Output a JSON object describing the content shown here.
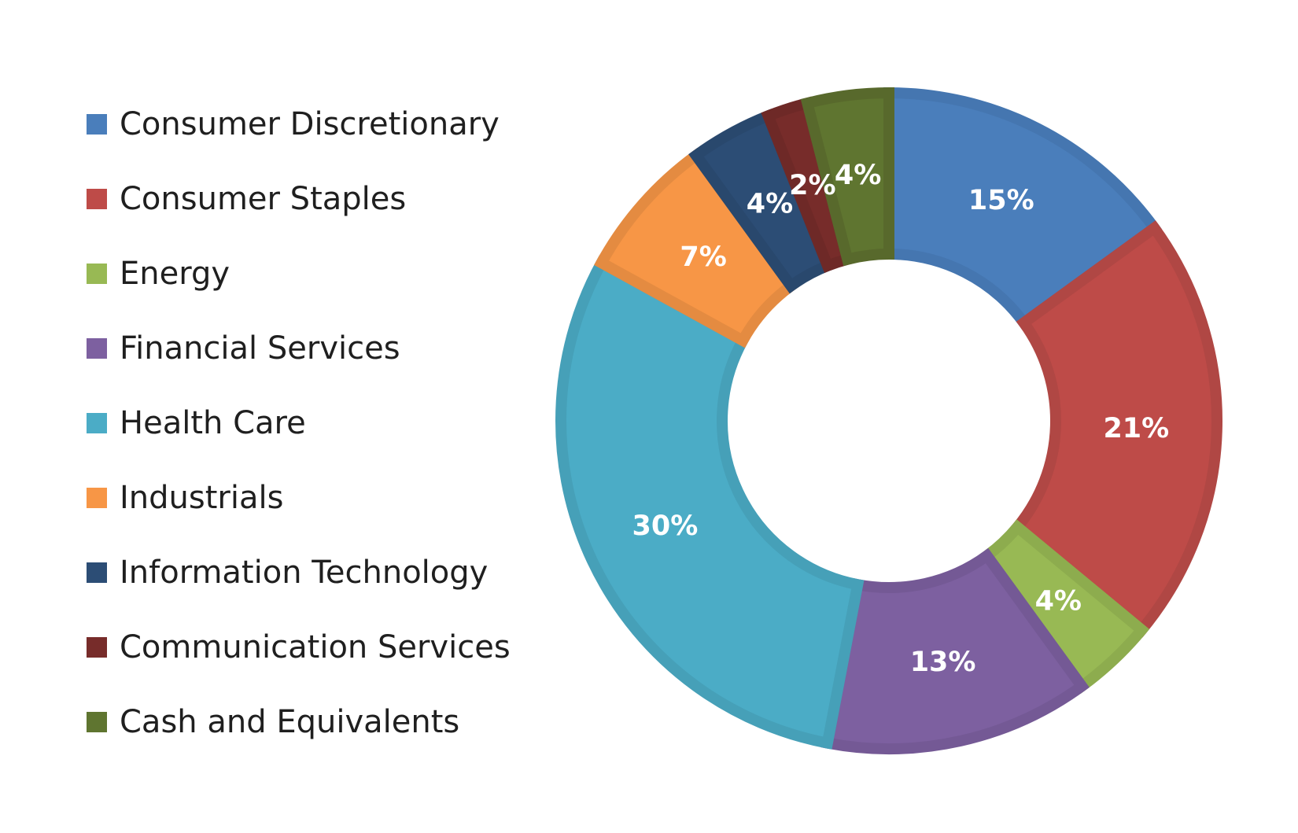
{
  "chart_data": {
    "type": "pie",
    "variant": "donut",
    "legend_position": "left",
    "categories": [
      "Consumer Discretionary",
      "Consumer Staples",
      "Energy",
      "Financial Services",
      "Health Care",
      "Industrials",
      "Information Technology",
      "Communication Services",
      "Cash and Equivalents"
    ],
    "values": [
      15,
      21,
      4,
      13,
      30,
      7,
      4,
      2,
      4
    ],
    "data_labels": [
      "15%",
      "21%",
      "4%",
      "13%",
      "30%",
      "7%",
      "4%",
      "2%",
      "4%"
    ],
    "colors": [
      "#4A7EBB",
      "#BE4B48",
      "#98B954",
      "#7D60A0",
      "#4BACC6",
      "#F79646",
      "#2C4D75",
      "#772C2A",
      "#5F7530"
    ],
    "border_colors": [
      "#4576B0",
      "#B04744",
      "#8DAC4E",
      "#745995",
      "#46A0B8",
      "#E48B41",
      "#29486D",
      "#6E2927",
      "#58692C"
    ]
  }
}
